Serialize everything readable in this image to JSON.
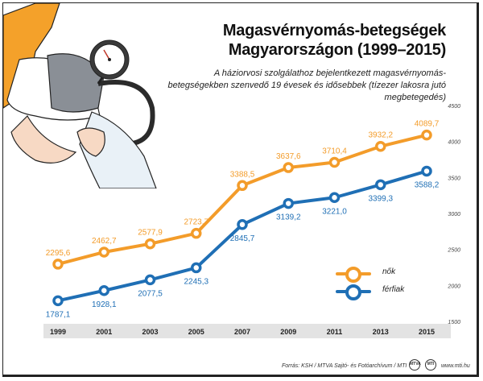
{
  "title": "Magasvérnyomás-betegségek Magyarországon (1999–2015)",
  "subtitle": "A háziorvosi szolgálathoz bejelentkezett magasvérnyomás-betegségekben szenvedő 19 évesek és idősebbek (tízezer lakosra jutó megbetegedés)",
  "footer": {
    "source": "Forrás: KSH / MTVA Sajtó- és Fotóarchívum / MTI",
    "logo1": "MTVA",
    "logo2": "MTI",
    "site": "www.mti.hu"
  },
  "colors": {
    "orange": "#f39c2a",
    "blue": "#1f6fb5",
    "axis_band": "#e3e3e3"
  },
  "chart_data": {
    "type": "line",
    "title": "Magasvérnyomás-betegségek Magyarországon (1999–2015)",
    "x": [
      "1999",
      "2001",
      "2003",
      "2005",
      "2007",
      "2009",
      "2011",
      "2013",
      "2015"
    ],
    "ylim": [
      1500,
      4500
    ],
    "yticks": [
      1500,
      2000,
      2500,
      3000,
      3500,
      4000,
      4500
    ],
    "grid": false,
    "legend": "bottom-right",
    "series": [
      {
        "name": "nők",
        "color": "#f39c2a",
        "values": [
          2295.6,
          2462.7,
          2577.9,
          2723.7,
          3388.5,
          3637.6,
          3710.4,
          3932.2,
          4089.7
        ],
        "labels": [
          "2295,6",
          "2462,7",
          "2577,9",
          "2723,7",
          "3388,5",
          "3637,6",
          "3710,4",
          "3932,2",
          "4089,7"
        ]
      },
      {
        "name": "férfiak",
        "color": "#1f6fb5",
        "values": [
          1787.1,
          1928.1,
          2077.5,
          2245.3,
          2845.7,
          3139.2,
          3221.0,
          3399.3,
          3588.2
        ],
        "labels": [
          "1787,1",
          "1928,1",
          "2077,5",
          "2245,3",
          "2845,7",
          "3139,2",
          "3221,0",
          "3399,3",
          "3588,2"
        ]
      }
    ]
  }
}
